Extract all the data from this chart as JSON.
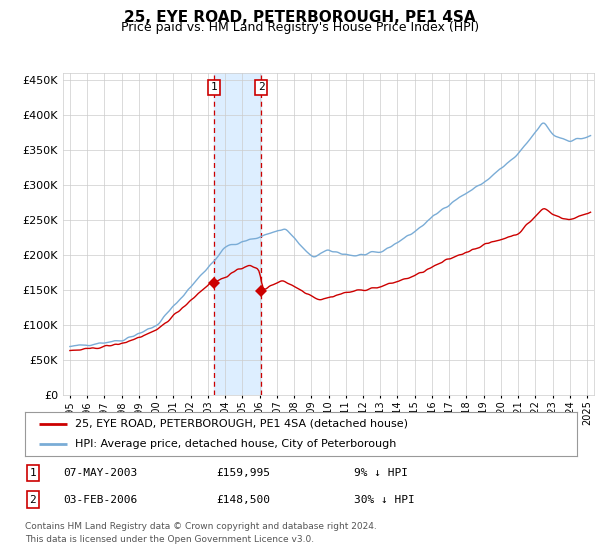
{
  "title": "25, EYE ROAD, PETERBOROUGH, PE1 4SA",
  "subtitle": "Price paid vs. HM Land Registry's House Price Index (HPI)",
  "legend_red": "25, EYE ROAD, PETERBOROUGH, PE1 4SA (detached house)",
  "legend_blue": "HPI: Average price, detached house, City of Peterborough",
  "transaction1_date": "07-MAY-2003",
  "transaction1_price": 159995,
  "transaction1_x": 2003.35,
  "transaction2_date": "03-FEB-2006",
  "transaction2_price": 148500,
  "transaction2_x": 2006.09,
  "footnote": "Contains HM Land Registry data © Crown copyright and database right 2024.\nThis data is licensed under the Open Government Licence v3.0.",
  "ylim": [
    0,
    460000
  ],
  "xlim_start": 1994.6,
  "xlim_end": 2025.4,
  "background_color": "#ffffff",
  "grid_color": "#cccccc",
  "red_color": "#cc0000",
  "blue_color": "#7aacd6",
  "highlight_fill": "#ddeeff",
  "title_fontsize": 11,
  "subtitle_fontsize": 9
}
